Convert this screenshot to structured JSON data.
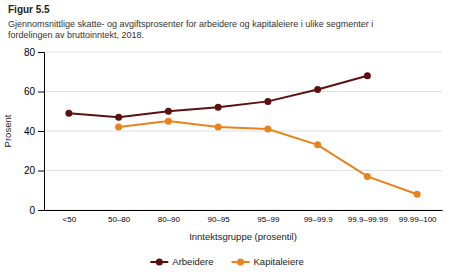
{
  "chart_data": {
    "type": "line",
    "title": "Figur 5.5",
    "subtitle": "Gjennomsnittlige skatte- og avgiftsprosenter for arbeidere og kapitaleiere i ulike segmenter i\nfordelingen av bruttoinntekt, 2018.",
    "xlabel": "Inntektsgruppe (prosentil)",
    "ylabel": "Prosent",
    "categories": [
      "<50",
      "50–80",
      "80–90",
      "90–95",
      "95–99",
      "99–99.9",
      "99.9–99.99",
      "99.99–100"
    ],
    "series": [
      {
        "name": "Arbeidere",
        "color": "#5C1010",
        "values": [
          49,
          47,
          50,
          52,
          55,
          61,
          68,
          null
        ]
      },
      {
        "name": "Kapitaleiere",
        "color": "#E8821A",
        "values": [
          null,
          42,
          45,
          42,
          41,
          33,
          17,
          8
        ]
      }
    ],
    "ylim": [
      0,
      80
    ],
    "yticks": [
      0,
      20,
      40,
      60,
      80
    ],
    "grid": true,
    "legend": "bottom",
    "marker": "circle"
  }
}
